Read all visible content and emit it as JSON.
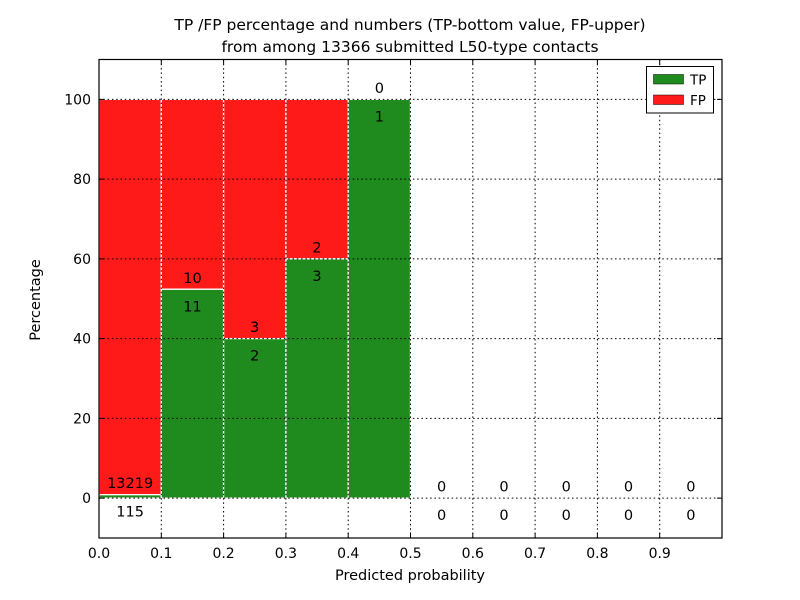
{
  "chart_data": {
    "type": "bar",
    "title_line1": "TP /FP percentage and numbers (TP-bottom value, FP-upper)",
    "title_line2": "from among 13366 submitted L50-type contacts",
    "xlabel": "Predicted probability",
    "ylabel": "Percentage",
    "xlim": [
      0.0,
      1.0
    ],
    "ylim": [
      -10,
      110
    ],
    "xtick_values": [
      0.0,
      0.1,
      0.2,
      0.3,
      0.4,
      0.5,
      0.6,
      0.7,
      0.8,
      0.9
    ],
    "xtick_labels": [
      "0.0",
      "0.1",
      "0.2",
      "0.3",
      "0.4",
      "0.5",
      "0.6",
      "0.7",
      "0.8",
      "0.9"
    ],
    "ytick_values": [
      0,
      20,
      40,
      60,
      80,
      100
    ],
    "ytick_labels": [
      "0",
      "20",
      "40",
      "60",
      "80",
      "100"
    ],
    "vgrid_values": [
      0.1,
      0.2,
      0.3,
      0.4,
      0.5,
      0.6,
      0.7,
      0.8,
      0.9
    ],
    "grid": true,
    "grid_style": "dotted",
    "total_contacts": 13366,
    "bins": [
      {
        "x0": 0.0,
        "x1": 0.1,
        "tp": 115,
        "fp": 13219
      },
      {
        "x0": 0.1,
        "x1": 0.2,
        "tp": 11,
        "fp": 10
      },
      {
        "x0": 0.2,
        "x1": 0.3,
        "tp": 2,
        "fp": 3
      },
      {
        "x0": 0.3,
        "x1": 0.4,
        "tp": 3,
        "fp": 2
      },
      {
        "x0": 0.4,
        "x1": 0.5,
        "tp": 1,
        "fp": 0
      },
      {
        "x0": 0.5,
        "x1": 0.6,
        "tp": 0,
        "fp": 0
      },
      {
        "x0": 0.6,
        "x1": 0.7,
        "tp": 0,
        "fp": 0
      },
      {
        "x0": 0.7,
        "x1": 0.8,
        "tp": 0,
        "fp": 0
      },
      {
        "x0": 0.8,
        "x1": 0.9,
        "tp": 0,
        "fp": 0
      },
      {
        "x0": 0.9,
        "x1": 1.0,
        "tp": 0,
        "fp": 0
      }
    ],
    "legend": {
      "position": "upper right",
      "entries": [
        {
          "label": "TP",
          "color": "#1f8b1f"
        },
        {
          "label": "FP",
          "color": "#ff1a1a"
        }
      ]
    },
    "colors": {
      "tp": "#1f8b1f",
      "fp": "#ff1a1a",
      "bar_edge": "#ffffff",
      "grid": "#000000",
      "frame": "#000000",
      "background": "#ffffff",
      "text": "#000000"
    }
  }
}
